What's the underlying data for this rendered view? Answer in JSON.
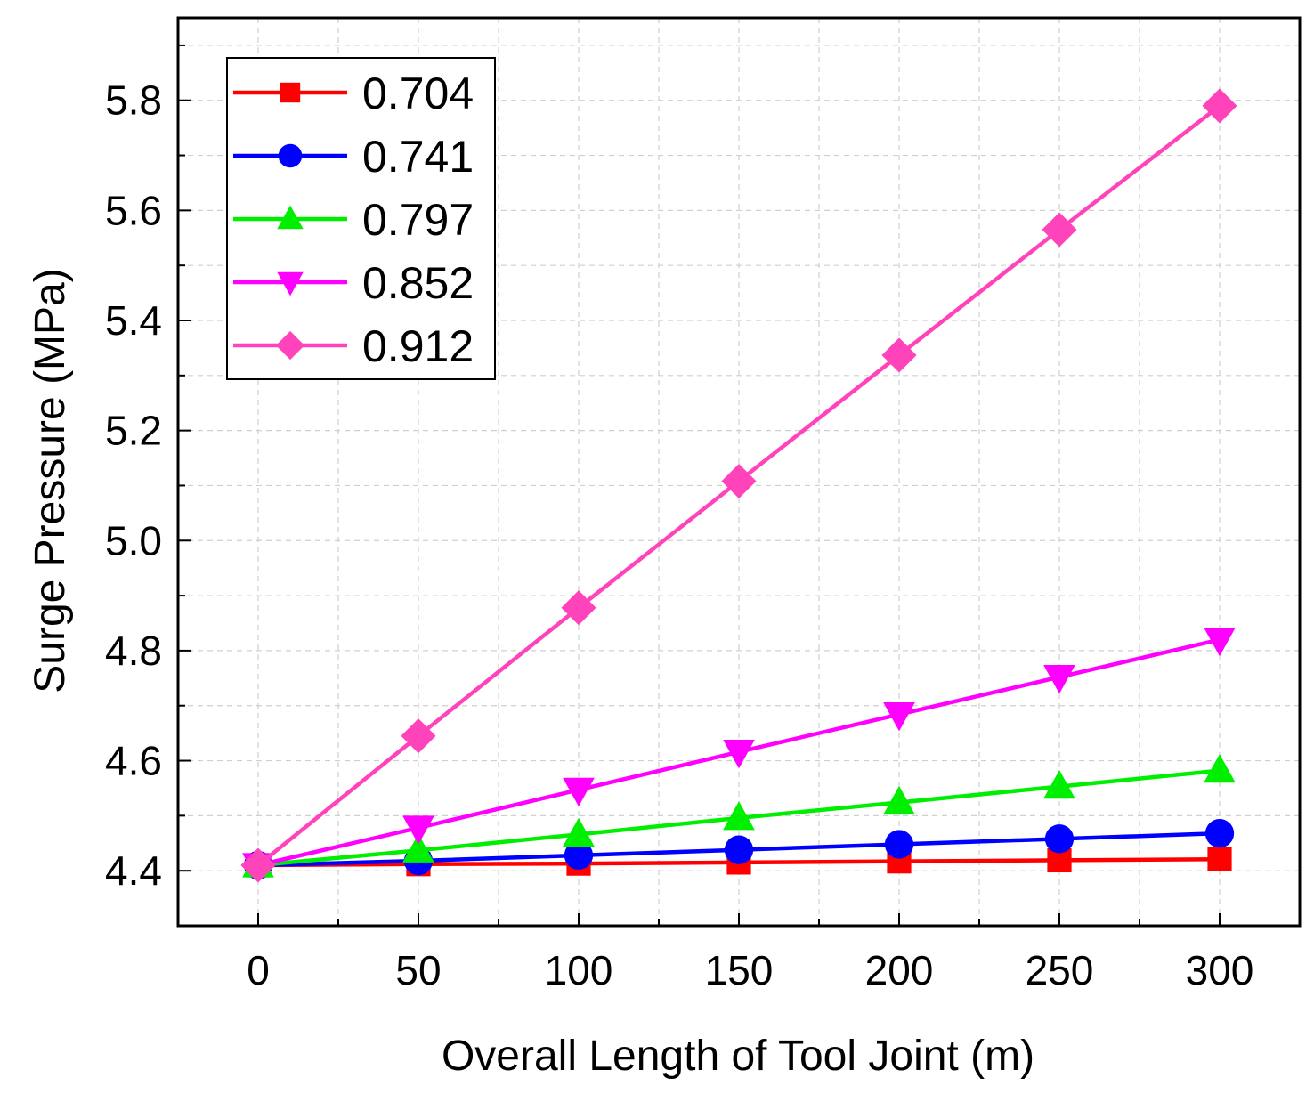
{
  "chart_data": {
    "type": "line",
    "xlabel": "Overall Length of Tool Joint (m)",
    "ylabel": "Surge Pressure (MPa)",
    "xlim": [
      -25,
      325
    ],
    "ylim": [
      4.3,
      5.95
    ],
    "xticks": [
      0,
      50,
      100,
      150,
      200,
      250,
      300
    ],
    "xtick_labels": [
      "0",
      "50",
      "100",
      "150",
      "200",
      "250",
      "300"
    ],
    "yticks": [
      4.4,
      4.6,
      4.8,
      5.0,
      5.2,
      5.4,
      5.6,
      5.8
    ],
    "ytick_labels": [
      "4.4",
      "4.6",
      "4.8",
      "5.0",
      "5.2",
      "5.4",
      "5.6",
      "5.8"
    ],
    "grid": true,
    "legend_position": "top-left",
    "x": [
      0,
      50,
      100,
      150,
      200,
      250,
      300
    ],
    "series": [
      {
        "name": "0.704",
        "color": "#ff0000",
        "marker": "square",
        "values": [
          4.41,
          4.412,
          4.413,
          4.415,
          4.417,
          4.419,
          4.421
        ]
      },
      {
        "name": "0.741",
        "color": "#0000ff",
        "marker": "circle",
        "values": [
          4.41,
          4.418,
          4.428,
          4.438,
          4.448,
          4.458,
          4.468
        ]
      },
      {
        "name": "0.797",
        "color": "#00ee00",
        "marker": "triangle-up",
        "values": [
          4.41,
          4.437,
          4.466,
          4.496,
          4.524,
          4.553,
          4.582
        ]
      },
      {
        "name": "0.852",
        "color": "#ff00ff",
        "marker": "triangle-down",
        "values": [
          4.41,
          4.478,
          4.547,
          4.616,
          4.684,
          4.752,
          4.82
        ]
      },
      {
        "name": "0.912",
        "color": "#ff44bb",
        "marker": "diamond",
        "values": [
          4.41,
          4.645,
          4.878,
          5.108,
          5.337,
          5.565,
          5.79
        ]
      }
    ]
  }
}
